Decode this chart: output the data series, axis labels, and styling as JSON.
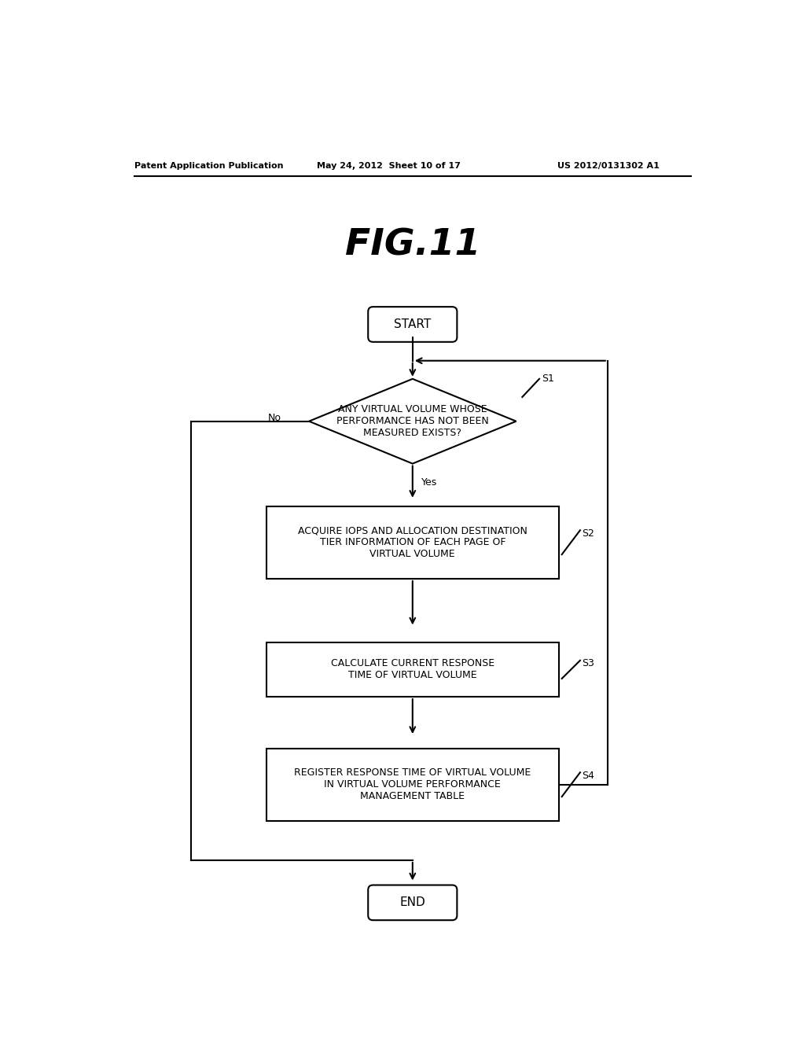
{
  "title": "FIG.11",
  "header_left": "Patent Application Publication",
  "header_mid": "May 24, 2012  Sheet 10 of 17",
  "header_right": "US 2012/0131302 A1",
  "bg_color": "#ffffff",
  "start_label": "START",
  "end_label": "END",
  "diamond_label": "ANY VIRTUAL VOLUME WHOSE\nPERFORMANCE HAS NOT BEEN\nMEASURED EXISTS?",
  "diamond_yes": "Yes",
  "diamond_no": "No",
  "s1_label": "S1",
  "box1_label": "ACQUIRE IOPS AND ALLOCATION DESTINATION\nTIER INFORMATION OF EACH PAGE OF\nVIRTUAL VOLUME",
  "s2_label": "S2",
  "box2_label": "CALCULATE CURRENT RESPONSE\nTIME OF VIRTUAL VOLUME",
  "s3_label": "S3",
  "box3_label": "REGISTER RESPONSE TIME OF VIRTUAL VOLUME\nIN VIRTUAL VOLUME PERFORMANCE\nMANAGEMENT TABLE",
  "s4_label": "S4",
  "lw": 1.5
}
